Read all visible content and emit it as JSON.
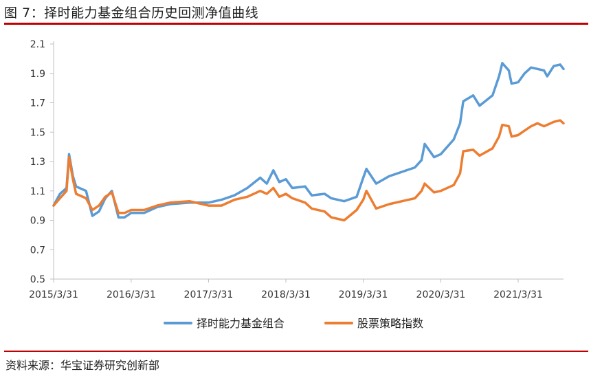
{
  "figure": {
    "title": "图 7：择时能力基金组合历史回测净值曲线",
    "source": "资料来源：华宝证券研究创新部"
  },
  "colors": {
    "accent_rule": "#c00000",
    "series_1": "#5b9bd5",
    "series_2": "#ed7d31",
    "axis": "#bfbfbf"
  },
  "chart_data": {
    "type": "line",
    "title": "",
    "xlabel": "",
    "ylabel": "",
    "grid": false,
    "legend_position": "bottom",
    "x_start": "2015/3/31",
    "x_end": "2021/10/31",
    "xticks": [
      "2015/3/31",
      "2016/3/31",
      "2017/3/31",
      "2018/3/31",
      "2019/3/31",
      "2020/3/31",
      "2021/3/31"
    ],
    "ylim": [
      0.5,
      2.1
    ],
    "yticks": [
      "0.5",
      "0.7",
      "0.9",
      "1.1",
      "1.3",
      "1.5",
      "1.7",
      "1.9",
      "2.1"
    ],
    "series": [
      {
        "name": "择时能力基金组合",
        "color": "#5b9bd5",
        "points": [
          [
            "2015/3/31",
            1.0
          ],
          [
            "2015/4/30",
            1.08
          ],
          [
            "2015/5/31",
            1.12
          ],
          [
            "2015/6/12",
            1.35
          ],
          [
            "2015/6/30",
            1.2
          ],
          [
            "2015/7/15",
            1.13
          ],
          [
            "2015/8/31",
            1.1
          ],
          [
            "2015/9/30",
            0.93
          ],
          [
            "2015/10/31",
            0.96
          ],
          [
            "2015/11/30",
            1.05
          ],
          [
            "2015/12/31",
            1.1
          ],
          [
            "2016/1/31",
            0.92
          ],
          [
            "2016/2/29",
            0.92
          ],
          [
            "2016/3/31",
            0.95
          ],
          [
            "2016/5/31",
            0.95
          ],
          [
            "2016/7/31",
            0.99
          ],
          [
            "2016/9/30",
            1.01
          ],
          [
            "2016/12/31",
            1.02
          ],
          [
            "2017/3/31",
            1.02
          ],
          [
            "2017/5/31",
            1.04
          ],
          [
            "2017/7/31",
            1.07
          ],
          [
            "2017/9/30",
            1.12
          ],
          [
            "2017/11/30",
            1.19
          ],
          [
            "2017/12/31",
            1.15
          ],
          [
            "2018/1/31",
            1.24
          ],
          [
            "2018/2/28",
            1.16
          ],
          [
            "2018/3/31",
            1.18
          ],
          [
            "2018/4/30",
            1.12
          ],
          [
            "2018/6/30",
            1.13
          ],
          [
            "2018/7/31",
            1.07
          ],
          [
            "2018/9/30",
            1.08
          ],
          [
            "2018/10/31",
            1.05
          ],
          [
            "2018/12/31",
            1.03
          ],
          [
            "2019/2/28",
            1.06
          ],
          [
            "2019/3/31",
            1.19
          ],
          [
            "2019/4/15",
            1.25
          ],
          [
            "2019/5/31",
            1.15
          ],
          [
            "2019/7/31",
            1.2
          ],
          [
            "2019/9/30",
            1.23
          ],
          [
            "2019/11/30",
            1.26
          ],
          [
            "2019/12/31",
            1.31
          ],
          [
            "2020/1/15",
            1.42
          ],
          [
            "2020/2/28",
            1.33
          ],
          [
            "2020/3/31",
            1.35
          ],
          [
            "2020/5/31",
            1.45
          ],
          [
            "2020/6/30",
            1.56
          ],
          [
            "2020/7/15",
            1.71
          ],
          [
            "2020/8/31",
            1.75
          ],
          [
            "2020/9/30",
            1.68
          ],
          [
            "2020/11/30",
            1.75
          ],
          [
            "2020/12/31",
            1.88
          ],
          [
            "2021/1/15",
            1.97
          ],
          [
            "2021/2/15",
            1.92
          ],
          [
            "2021/2/28",
            1.83
          ],
          [
            "2021/3/31",
            1.84
          ],
          [
            "2021/4/30",
            1.9
          ],
          [
            "2021/5/31",
            1.94
          ],
          [
            "2021/6/30",
            1.93
          ],
          [
            "2021/7/31",
            1.92
          ],
          [
            "2021/8/15",
            1.88
          ],
          [
            "2021/9/15",
            1.95
          ],
          [
            "2021/10/15",
            1.96
          ],
          [
            "2021/10/31",
            1.93
          ]
        ]
      },
      {
        "name": "股票策略指数",
        "color": "#ed7d31",
        "points": [
          [
            "2015/3/31",
            1.0
          ],
          [
            "2015/4/30",
            1.05
          ],
          [
            "2015/5/31",
            1.1
          ],
          [
            "2015/6/12",
            1.33
          ],
          [
            "2015/6/30",
            1.18
          ],
          [
            "2015/7/15",
            1.08
          ],
          [
            "2015/8/31",
            1.05
          ],
          [
            "2015/9/30",
            0.97
          ],
          [
            "2015/10/31",
            1.0
          ],
          [
            "2015/11/30",
            1.06
          ],
          [
            "2015/12/31",
            1.09
          ],
          [
            "2016/1/31",
            0.95
          ],
          [
            "2016/2/29",
            0.95
          ],
          [
            "2016/3/31",
            0.97
          ],
          [
            "2016/5/31",
            0.97
          ],
          [
            "2016/7/31",
            1.0
          ],
          [
            "2016/9/30",
            1.02
          ],
          [
            "2016/12/31",
            1.03
          ],
          [
            "2017/3/31",
            1.0
          ],
          [
            "2017/5/31",
            1.0
          ],
          [
            "2017/7/31",
            1.04
          ],
          [
            "2017/9/30",
            1.06
          ],
          [
            "2017/11/30",
            1.1
          ],
          [
            "2017/12/31",
            1.08
          ],
          [
            "2018/1/31",
            1.12
          ],
          [
            "2018/2/28",
            1.06
          ],
          [
            "2018/3/31",
            1.08
          ],
          [
            "2018/4/30",
            1.05
          ],
          [
            "2018/6/30",
            1.02
          ],
          [
            "2018/7/31",
            0.98
          ],
          [
            "2018/9/30",
            0.96
          ],
          [
            "2018/10/31",
            0.92
          ],
          [
            "2018/12/31",
            0.9
          ],
          [
            "2019/2/28",
            0.97
          ],
          [
            "2019/3/31",
            1.04
          ],
          [
            "2019/4/15",
            1.1
          ],
          [
            "2019/5/31",
            0.98
          ],
          [
            "2019/7/31",
            1.01
          ],
          [
            "2019/9/30",
            1.03
          ],
          [
            "2019/11/30",
            1.05
          ],
          [
            "2019/12/31",
            1.1
          ],
          [
            "2020/1/15",
            1.15
          ],
          [
            "2020/2/28",
            1.09
          ],
          [
            "2020/3/31",
            1.1
          ],
          [
            "2020/5/31",
            1.14
          ],
          [
            "2020/6/30",
            1.22
          ],
          [
            "2020/7/15",
            1.37
          ],
          [
            "2020/8/31",
            1.38
          ],
          [
            "2020/9/30",
            1.34
          ],
          [
            "2020/11/30",
            1.39
          ],
          [
            "2020/12/31",
            1.47
          ],
          [
            "2021/1/15",
            1.55
          ],
          [
            "2021/2/15",
            1.54
          ],
          [
            "2021/2/28",
            1.47
          ],
          [
            "2021/3/31",
            1.48
          ],
          [
            "2021/4/30",
            1.51
          ],
          [
            "2021/5/31",
            1.54
          ],
          [
            "2021/6/30",
            1.56
          ],
          [
            "2021/7/31",
            1.54
          ],
          [
            "2021/8/15",
            1.55
          ],
          [
            "2021/9/15",
            1.57
          ],
          [
            "2021/10/15",
            1.58
          ],
          [
            "2021/10/31",
            1.56
          ]
        ]
      }
    ]
  }
}
